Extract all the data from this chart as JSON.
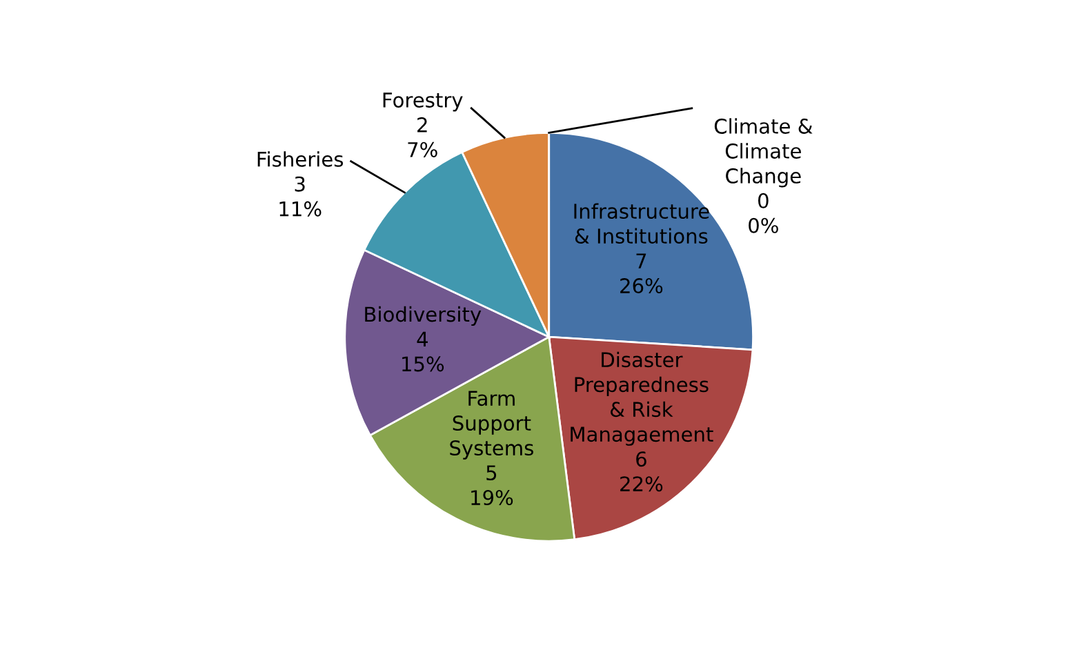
{
  "chart_data": {
    "type": "pie",
    "categories": [
      "Infrastructure\n& Institutions",
      "Disaster\nPreparedness\n& Risk\nManagaement",
      "Farm\nSupport\nSystems",
      "Biodiversity",
      "Fisheries",
      "Forestry",
      "Climate &\nClimate\nChange"
    ],
    "values": [
      26,
      22,
      19,
      15,
      11,
      7,
      0
    ],
    "value_labels": [
      "7\n26%",
      "6\n22%",
      "5\n19%",
      "4\n15%",
      "3\n11%",
      "2\n7%",
      "0\n0%"
    ],
    "colors": [
      "#4572a7",
      "#aa4643",
      "#89a54e",
      "#71588f",
      "#4198af",
      "#db843d",
      "#93a9cf"
    ]
  }
}
